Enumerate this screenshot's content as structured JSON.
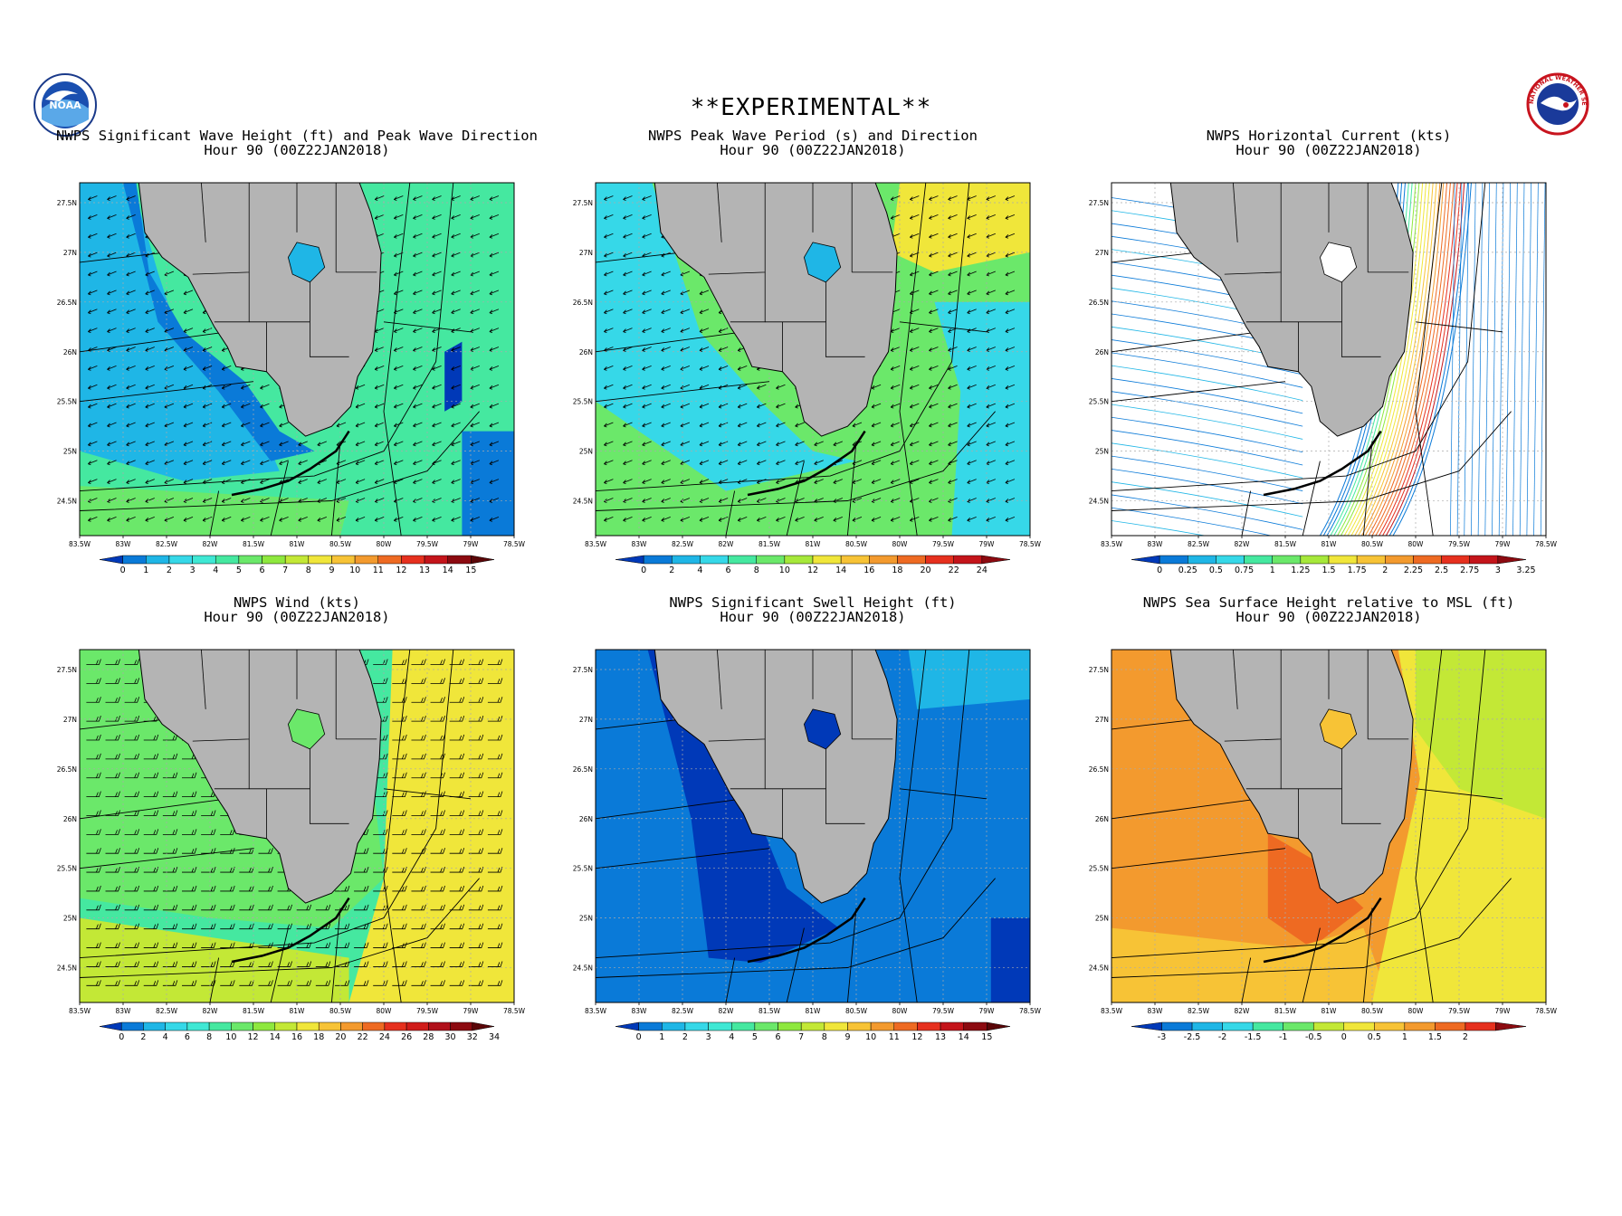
{
  "header": {
    "banner": "**EXPERIMENTAL**"
  },
  "logos": {
    "left": "noaa-logo",
    "right": "national-weather-service-logo",
    "right_text": "NATIONAL WEATHER SERVICE"
  },
  "axes": {
    "lon_ticks": [
      "83.5W",
      "83W",
      "82.5W",
      "82W",
      "81.5W",
      "81W",
      "80.5W",
      "80W",
      "79.5W",
      "79W",
      "78.5W"
    ],
    "lat_ticks": [
      "27.5N",
      "27N",
      "26.5N",
      "26N",
      "25.5N",
      "25N",
      "24.5N"
    ],
    "lon_range": [
      -83.5,
      -78.5
    ],
    "lat_range": [
      24.15,
      27.7
    ]
  },
  "panels": [
    {
      "id": "wave-height",
      "title_line1": "NWPS Significant Wave Height (ft) and Peak Wave Direction",
      "title_line2": "Hour 90 (00Z22JAN2018)",
      "colorbar_labels": [
        "0",
        "1",
        "2",
        "3",
        "4",
        "5",
        "6",
        "7",
        "8",
        "9",
        "10",
        "11",
        "12",
        "13",
        "14",
        "15"
      ],
      "colorbar_colors": [
        "#0039b8",
        "#0a7ad8",
        "#1fb6e6",
        "#36d8e8",
        "#3fe8d4",
        "#45e8a0",
        "#6be86a",
        "#8ee83e",
        "#c3e836",
        "#f0e63a",
        "#f7c336",
        "#f39a2e",
        "#ee6a22",
        "#e6301e",
        "#c4141a",
        "#8c0a10",
        "#5a0608"
      ],
      "field": "height",
      "overlay": "arrows"
    },
    {
      "id": "peak-period",
      "title_line1": "NWPS Peak Wave Period (s) and Direction",
      "title_line2": "Hour 90 (00Z22JAN2018)",
      "colorbar_labels": [
        "0",
        "2",
        "4",
        "6",
        "8",
        "10",
        "12",
        "14",
        "16",
        "18",
        "20",
        "22",
        "24"
      ],
      "colorbar_colors": [
        "#0039b8",
        "#0a7ad8",
        "#1fb6e6",
        "#36d8e8",
        "#45e8a0",
        "#6be86a",
        "#a6e83a",
        "#f0e63a",
        "#f7c336",
        "#f39a2e",
        "#ee6a22",
        "#e6301e",
        "#c4141a",
        "#8c0a10"
      ],
      "field": "period",
      "overlay": "arrows"
    },
    {
      "id": "current",
      "title_line1": "NWPS Horizontal Current (kts)",
      "title_line2": "Hour 90 (00Z22JAN2018)",
      "colorbar_labels": [
        "0",
        "0.25",
        "0.5",
        "0.75",
        "1",
        "1.25",
        "1.5",
        "1.75",
        "2",
        "2.25",
        "2.5",
        "2.75",
        "3",
        "3.25"
      ],
      "colorbar_colors": [
        "#0039b8",
        "#0a7ad8",
        "#1fb6e6",
        "#36d8e8",
        "#45e8a0",
        "#6be86a",
        "#a6e83a",
        "#f0e63a",
        "#f7c336",
        "#f39a2e",
        "#ee6a22",
        "#e6301e",
        "#c4141a",
        "#8c0a10"
      ],
      "field": "current",
      "overlay": "streamlines"
    },
    {
      "id": "wind",
      "title_line1": "NWPS Wind (kts)",
      "title_line2": "Hour 90 (00Z22JAN2018)",
      "colorbar_labels": [
        "0",
        "2",
        "4",
        "6",
        "8",
        "10",
        "12",
        "14",
        "16",
        "18",
        "20",
        "22",
        "24",
        "26",
        "28",
        "30",
        "32",
        "34"
      ],
      "colorbar_colors": [
        "#0039b8",
        "#0a7ad8",
        "#1fb6e6",
        "#36d8e8",
        "#3fe8d4",
        "#45e8a0",
        "#6be86a",
        "#8ee83e",
        "#c3e836",
        "#f0e63a",
        "#f7c336",
        "#f39a2e",
        "#ee6a22",
        "#e6301e",
        "#d01c1a",
        "#b0101a",
        "#8c0a10",
        "#5a0608"
      ],
      "field": "wind",
      "overlay": "barbs"
    },
    {
      "id": "swell",
      "title_line1": "NWPS Significant Swell Height (ft)",
      "title_line2": "Hour 90 (00Z22JAN2018)",
      "colorbar_labels": [
        "0",
        "1",
        "2",
        "3",
        "4",
        "5",
        "6",
        "7",
        "8",
        "9",
        "10",
        "11",
        "12",
        "13",
        "14",
        "15"
      ],
      "colorbar_colors": [
        "#0039b8",
        "#0a7ad8",
        "#1fb6e6",
        "#36d8e8",
        "#3fe8d4",
        "#45e8a0",
        "#6be86a",
        "#8ee83e",
        "#c3e836",
        "#f0e63a",
        "#f7c336",
        "#f39a2e",
        "#ee6a22",
        "#e6301e",
        "#c4141a",
        "#8c0a10",
        "#5a0608"
      ],
      "field": "swell",
      "overlay": "none"
    },
    {
      "id": "ssh",
      "title_line1": "NWPS Sea Surface Height relative to MSL (ft)",
      "title_line2": "Hour 90 (00Z22JAN2018)",
      "colorbar_labels": [
        "-3",
        "-2.5",
        "-2",
        "-1.5",
        "-1",
        "-0.5",
        "0",
        "0.5",
        "1",
        "1.5",
        "2"
      ],
      "colorbar_colors": [
        "#0039b8",
        "#0a7ad8",
        "#1fb6e6",
        "#36d8e8",
        "#45e8a0",
        "#6be86a",
        "#c3e836",
        "#f0e63a",
        "#f7c336",
        "#f39a2e",
        "#ee6a22",
        "#e6301e",
        "#8c0a10"
      ],
      "field": "ssh",
      "overlay": "none"
    }
  ],
  "colors": {
    "land": "#b4b4b4",
    "border": "#000000",
    "grid": "#aaaaaa"
  }
}
